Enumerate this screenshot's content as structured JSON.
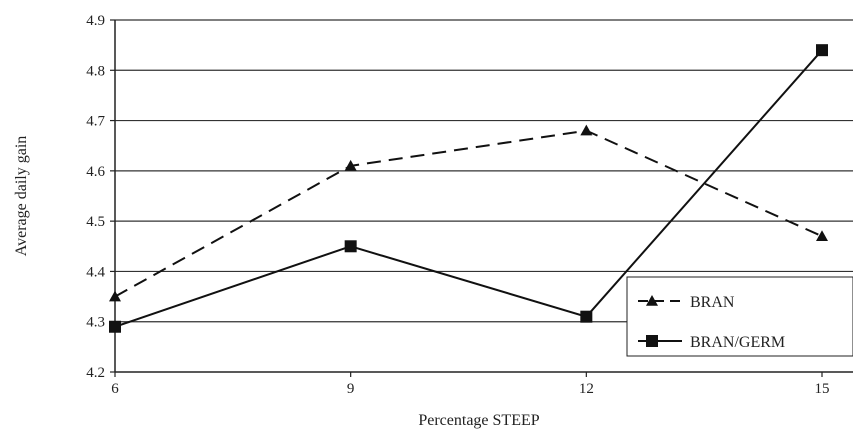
{
  "chart_data": {
    "type": "line",
    "x": [
      6,
      9,
      12,
      15
    ],
    "xlabel": "Percentage STEEP",
    "ylabel": "Average daily gain",
    "ylim": [
      4.2,
      4.9
    ],
    "yticks": [
      4.2,
      4.3,
      4.4,
      4.5,
      4.6,
      4.7,
      4.8,
      4.9
    ],
    "grid": "horizontal",
    "legend_position": "bottom-right",
    "series": [
      {
        "name": "BRAN",
        "values": [
          4.35,
          4.61,
          4.68,
          4.47
        ],
        "marker": "triangle",
        "line_style": "dashed",
        "color": "#111111"
      },
      {
        "name": "BRAN/GERM",
        "values": [
          4.29,
          4.45,
          4.31,
          4.84
        ],
        "marker": "square",
        "line_style": "solid",
        "color": "#111111"
      }
    ]
  }
}
